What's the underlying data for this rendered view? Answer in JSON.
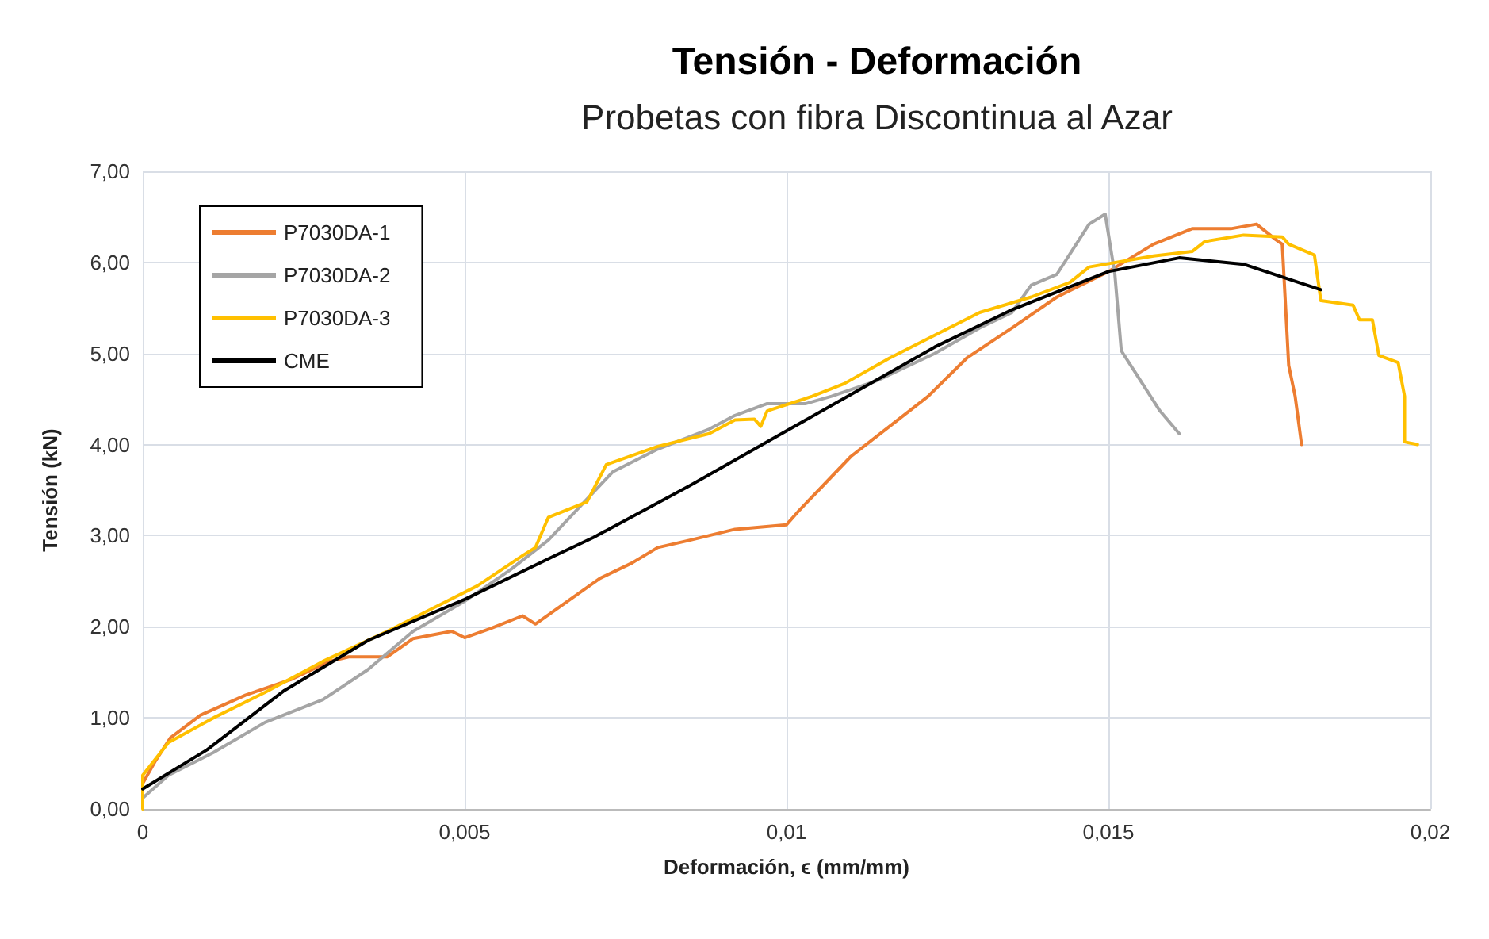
{
  "chart_data": {
    "type": "line",
    "title": "Tensión - Deformación",
    "subtitle": "Probetas con fibra Discontinua al Azar",
    "xlabel": "Deformación, ϵ (mm/mm)",
    "ylabel": "Tensión (kN)",
    "xlim": [
      0,
      0.02
    ],
    "xticks": [
      0,
      {
        "value": 0.005,
        "label": "0,005"
      },
      {
        "value": 0.01,
        "label": "0,01"
      },
      {
        "value": 0.015,
        "label": "0,015"
      },
      {
        "value": 0.02,
        "label": "0,02"
      }
    ],
    "ylim": [
      0,
      7
    ],
    "yticks": [
      {
        "value": 0,
        "label": "0,00"
      },
      {
        "value": 1,
        "label": "1,00"
      },
      {
        "value": 2,
        "label": "2,00"
      },
      {
        "value": 3,
        "label": "3,00"
      },
      {
        "value": 4,
        "label": "4,00"
      },
      {
        "value": 5,
        "label": "5,00"
      },
      {
        "value": 6,
        "label": "6,00"
      },
      {
        "value": 7,
        "label": "7,00"
      }
    ],
    "grid": true,
    "legend": "top left",
    "marker": "none",
    "line_style": "solid",
    "series": [
      {
        "name": "P7030DA-1",
        "color": "#ed7d31",
        "x": [
          0,
          0.0002,
          0.00043,
          0.0009,
          0.0016,
          0.0023,
          0.0029,
          0.0032,
          0.0038,
          0.0042,
          0.0048,
          0.005,
          0.0054,
          0.0059,
          0.0061,
          0.0066,
          0.0071,
          0.0076,
          0.008,
          0.0085,
          0.0092,
          0.01,
          0.0102,
          0.0105,
          0.011,
          0.0116,
          0.0122,
          0.0128,
          0.0135,
          0.0142,
          0.015,
          0.0157,
          0.0163,
          0.0169,
          0.0173,
          0.0176,
          0.0177,
          0.0178,
          0.0179,
          0.018
        ],
        "values": [
          0.28,
          0.53,
          0.78,
          1.03,
          1.25,
          1.42,
          1.62,
          1.67,
          1.67,
          1.87,
          1.95,
          1.88,
          1.98,
          2.12,
          2.03,
          2.28,
          2.53,
          2.7,
          2.87,
          2.95,
          3.07,
          3.12,
          3.28,
          3.5,
          3.87,
          4.2,
          4.53,
          4.95,
          5.28,
          5.62,
          5.9,
          6.2,
          6.37,
          6.37,
          6.42,
          6.25,
          6.2,
          4.87,
          4.53,
          4.0
        ]
      },
      {
        "name": "P7030DA-2",
        "color": "#a5a5a5",
        "x": [
          0,
          0.0004,
          0.0011,
          0.0019,
          0.0028,
          0.0035,
          0.0042,
          0.005,
          0.0057,
          0.0063,
          0.0069,
          0.0073,
          0.008,
          0.0088,
          0.0092,
          0.0097,
          0.0103,
          0.0107,
          0.0114,
          0.0123,
          0.013,
          0.0135,
          0.0138,
          0.0142,
          0.0145,
          0.0147,
          0.01495,
          0.0151,
          0.0152,
          0.0155,
          0.0158,
          0.0161
        ],
        "values": [
          0.12,
          0.37,
          0.62,
          0.95,
          1.2,
          1.53,
          1.95,
          2.28,
          2.62,
          2.95,
          3.4,
          3.7,
          3.95,
          4.17,
          4.32,
          4.45,
          4.45,
          4.53,
          4.7,
          5.0,
          5.28,
          5.45,
          5.75,
          5.87,
          6.2,
          6.42,
          6.53,
          5.87,
          5.03,
          4.7,
          4.37,
          4.12
        ]
      },
      {
        "name": "P7030DA-3",
        "color": "#ffc000",
        "x": [
          0,
          0,
          0.0004,
          0.0011,
          0.0019,
          0.0028,
          0.0038,
          0.0045,
          0.0052,
          0.0059,
          0.0061,
          0.0063,
          0.0069,
          0.0072,
          0.008,
          0.0088,
          0.0092,
          0.0095,
          0.0096,
          0.0097,
          0.0104,
          0.0109,
          0.0116,
          0.0123,
          0.013,
          0.0138,
          0.0144,
          0.0147,
          0.0157,
          0.0163,
          0.0165,
          0.0171,
          0.0177,
          0.0178,
          0.0182,
          0.0183,
          0.0188,
          0.0189,
          0.0191,
          0.0192,
          0.0195,
          0.0196,
          0.0196,
          0.0198
        ],
        "values": [
          0,
          0.37,
          0.73,
          1.0,
          1.28,
          1.62,
          1.95,
          2.2,
          2.45,
          2.78,
          2.87,
          3.2,
          3.37,
          3.78,
          3.98,
          4.12,
          4.27,
          4.28,
          4.2,
          4.37,
          4.53,
          4.67,
          4.95,
          5.2,
          5.45,
          5.62,
          5.78,
          5.95,
          6.07,
          6.12,
          6.23,
          6.3,
          6.28,
          6.2,
          6.08,
          5.58,
          5.53,
          5.37,
          5.37,
          4.98,
          4.9,
          4.53,
          4.03,
          4.0
        ]
      },
      {
        "name": "CME",
        "color": "#000000",
        "x": [
          0,
          0.001,
          0.0022,
          0.0035,
          0.005,
          0.0064,
          0.007,
          0.0085,
          0.01,
          0.0123,
          0.0135,
          0.015,
          0.0161,
          0.0171,
          0.0183
        ],
        "values": [
          0.22,
          0.65,
          1.3,
          1.85,
          2.3,
          2.78,
          2.98,
          3.55,
          4.15,
          5.07,
          5.48,
          5.9,
          6.05,
          5.98,
          5.7
        ]
      }
    ]
  }
}
